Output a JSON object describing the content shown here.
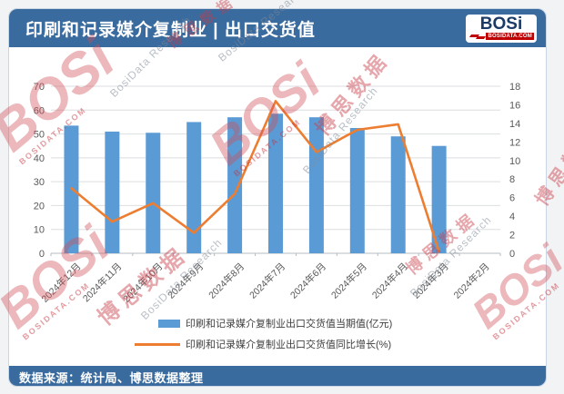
{
  "header": {
    "title": "印刷和记录媒介复制业 | 出口交货值",
    "logo": {
      "brand": "BOSi",
      "domain": "BOSIDATA.COM",
      "stripes_icon": "red-diagonal-stripes"
    }
  },
  "footer": {
    "source_label": "数据来源：统计局、博思数据整理"
  },
  "watermark": {
    "brand": "BOSi",
    "domain": "BOSIDATA.COM",
    "cjk": "博思数据",
    "latin": "BosiData Research"
  },
  "chart_data": {
    "type": "bar+line combo",
    "title": "印刷和记录媒介复制业 | 出口交货值",
    "categories": [
      "2024年12月",
      "2024年11月",
      "2024年10月",
      "2024年9月",
      "2024年8月",
      "2024年7月",
      "2024年6月",
      "2024年5月",
      "2024年4月",
      "2024年3月",
      "2024年2月"
    ],
    "series": [
      {
        "name": "印刷和记录媒介复制业出口交货值当期值(亿元)",
        "type": "bar",
        "axis": "left",
        "color": "#5b9bd5",
        "values": [
          53.5,
          51,
          50.5,
          55,
          57,
          58.5,
          57,
          52.5,
          49,
          45,
          null
        ]
      },
      {
        "name": "印刷和记录媒介复制业出口交货值同比增长(%)",
        "type": "line",
        "axis": "right",
        "color": "#ed7d31",
        "values": [
          7.0,
          3.4,
          5.4,
          2.2,
          6.4,
          16.4,
          10.9,
          13.3,
          13.9,
          0.2,
          null
        ]
      }
    ],
    "left_axis": {
      "min": 0,
      "max": 70,
      "step": 10,
      "ticks": [
        0,
        10,
        20,
        30,
        40,
        50,
        60,
        70
      ]
    },
    "right_axis": {
      "min": 0,
      "max": 18,
      "step": 2,
      "ticks": [
        0,
        2,
        4,
        6,
        8,
        10,
        12,
        14,
        16,
        18
      ]
    },
    "grid": true,
    "legend_position": "bottom",
    "x_label_rotation": -45
  }
}
